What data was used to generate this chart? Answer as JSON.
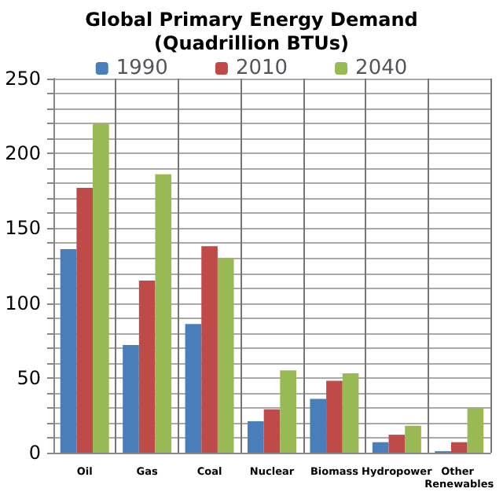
{
  "chart_data": {
    "type": "bar",
    "title": "Global Primary Energy Demand\n(Quadrillion BTUs)",
    "categories": [
      "Oil",
      "Gas",
      "Coal",
      "Nuclear",
      "Biomass",
      "Hydropower",
      "Other Renewables"
    ],
    "series": [
      {
        "name": "1990",
        "color": "#4a7ebb",
        "values": [
          136,
          72,
          86,
          21,
          36,
          7,
          1
        ]
      },
      {
        "name": "2010",
        "color": "#be4b48",
        "values": [
          177,
          115,
          138,
          29,
          48,
          12,
          7
        ]
      },
      {
        "name": "2040",
        "color": "#98b954",
        "values": [
          220,
          186,
          130,
          55,
          53,
          18,
          30
        ]
      }
    ],
    "ylim": [
      0,
      250
    ],
    "yticks": [
      0,
      {
        "value": 10,
        "label": null
      },
      {
        "value": 20,
        "label": null
      },
      {
        "value": 30,
        "label": null
      },
      {
        "value": 40,
        "label": null
      },
      50,
      {
        "value": 60,
        "label": null
      },
      {
        "value": 70,
        "label": null
      },
      {
        "value": 80,
        "label": null
      },
      {
        "value": 90,
        "label": null
      },
      100,
      {
        "value": 110,
        "label": null
      },
      {
        "value": 120,
        "label": null
      },
      {
        "value": 130,
        "label": null
      },
      {
        "value": 140,
        "label": null
      },
      150,
      {
        "value": 160,
        "label": null
      },
      {
        "value": 170,
        "label": null
      },
      {
        "value": 180,
        "label": null
      },
      {
        "value": 190,
        "label": null
      },
      200,
      {
        "value": 210,
        "label": null
      },
      {
        "value": 220,
        "label": null
      },
      {
        "value": 230,
        "label": null
      },
      {
        "value": 240,
        "label": null
      },
      250
    ],
    "grid": true,
    "legend": "top"
  }
}
